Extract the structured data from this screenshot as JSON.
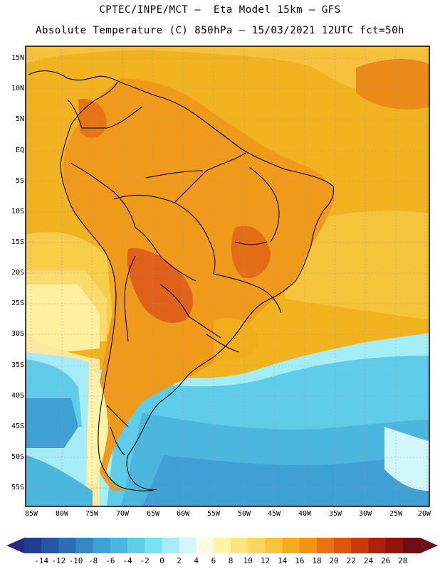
{
  "header": {
    "title_line1": "CPTEC/INPE/MCT –  Eta Model 15km – GFS",
    "title_line2": "Absolute Temperature (C) 850hPa – 15/03/2021 12UTC fct=50h"
  },
  "map": {
    "lat_labels": [
      "15N",
      "10N",
      "5N",
      "EQ",
      "5S",
      "10S",
      "15S",
      "20S",
      "25S",
      "30S",
      "35S",
      "40S",
      "45S",
      "50S",
      "55S"
    ],
    "lon_labels": [
      "85W",
      "80W",
      "75W",
      "70W",
      "65W",
      "60W",
      "55W",
      "50W",
      "45W",
      "40W",
      "35W",
      "30W",
      "25W",
      "20W"
    ]
  },
  "colorbar": {
    "labels": [
      "-14",
      "-12",
      "-10",
      "-8",
      "-6",
      "-4",
      "-2",
      "0",
      "2",
      "4",
      "6",
      "8",
      "10",
      "12",
      "14",
      "16",
      "18",
      "20",
      "22",
      "24",
      "26",
      "28"
    ],
    "colors": [
      "#1e3f8f",
      "#2555a5",
      "#2d6cb6",
      "#3787c6",
      "#3fa0d4",
      "#4bb7df",
      "#5fcde9",
      "#7ae0f2",
      "#a4eef8",
      "#d2f7fa",
      "#fff9df",
      "#fff3a8",
      "#ffe580",
      "#fbd561",
      "#f6c33f",
      "#f2ad1d",
      "#ef9416",
      "#e77313",
      "#de5510",
      "#c9380d",
      "#ac220b",
      "#8e1709",
      "#6c0f17"
    ]
  }
}
